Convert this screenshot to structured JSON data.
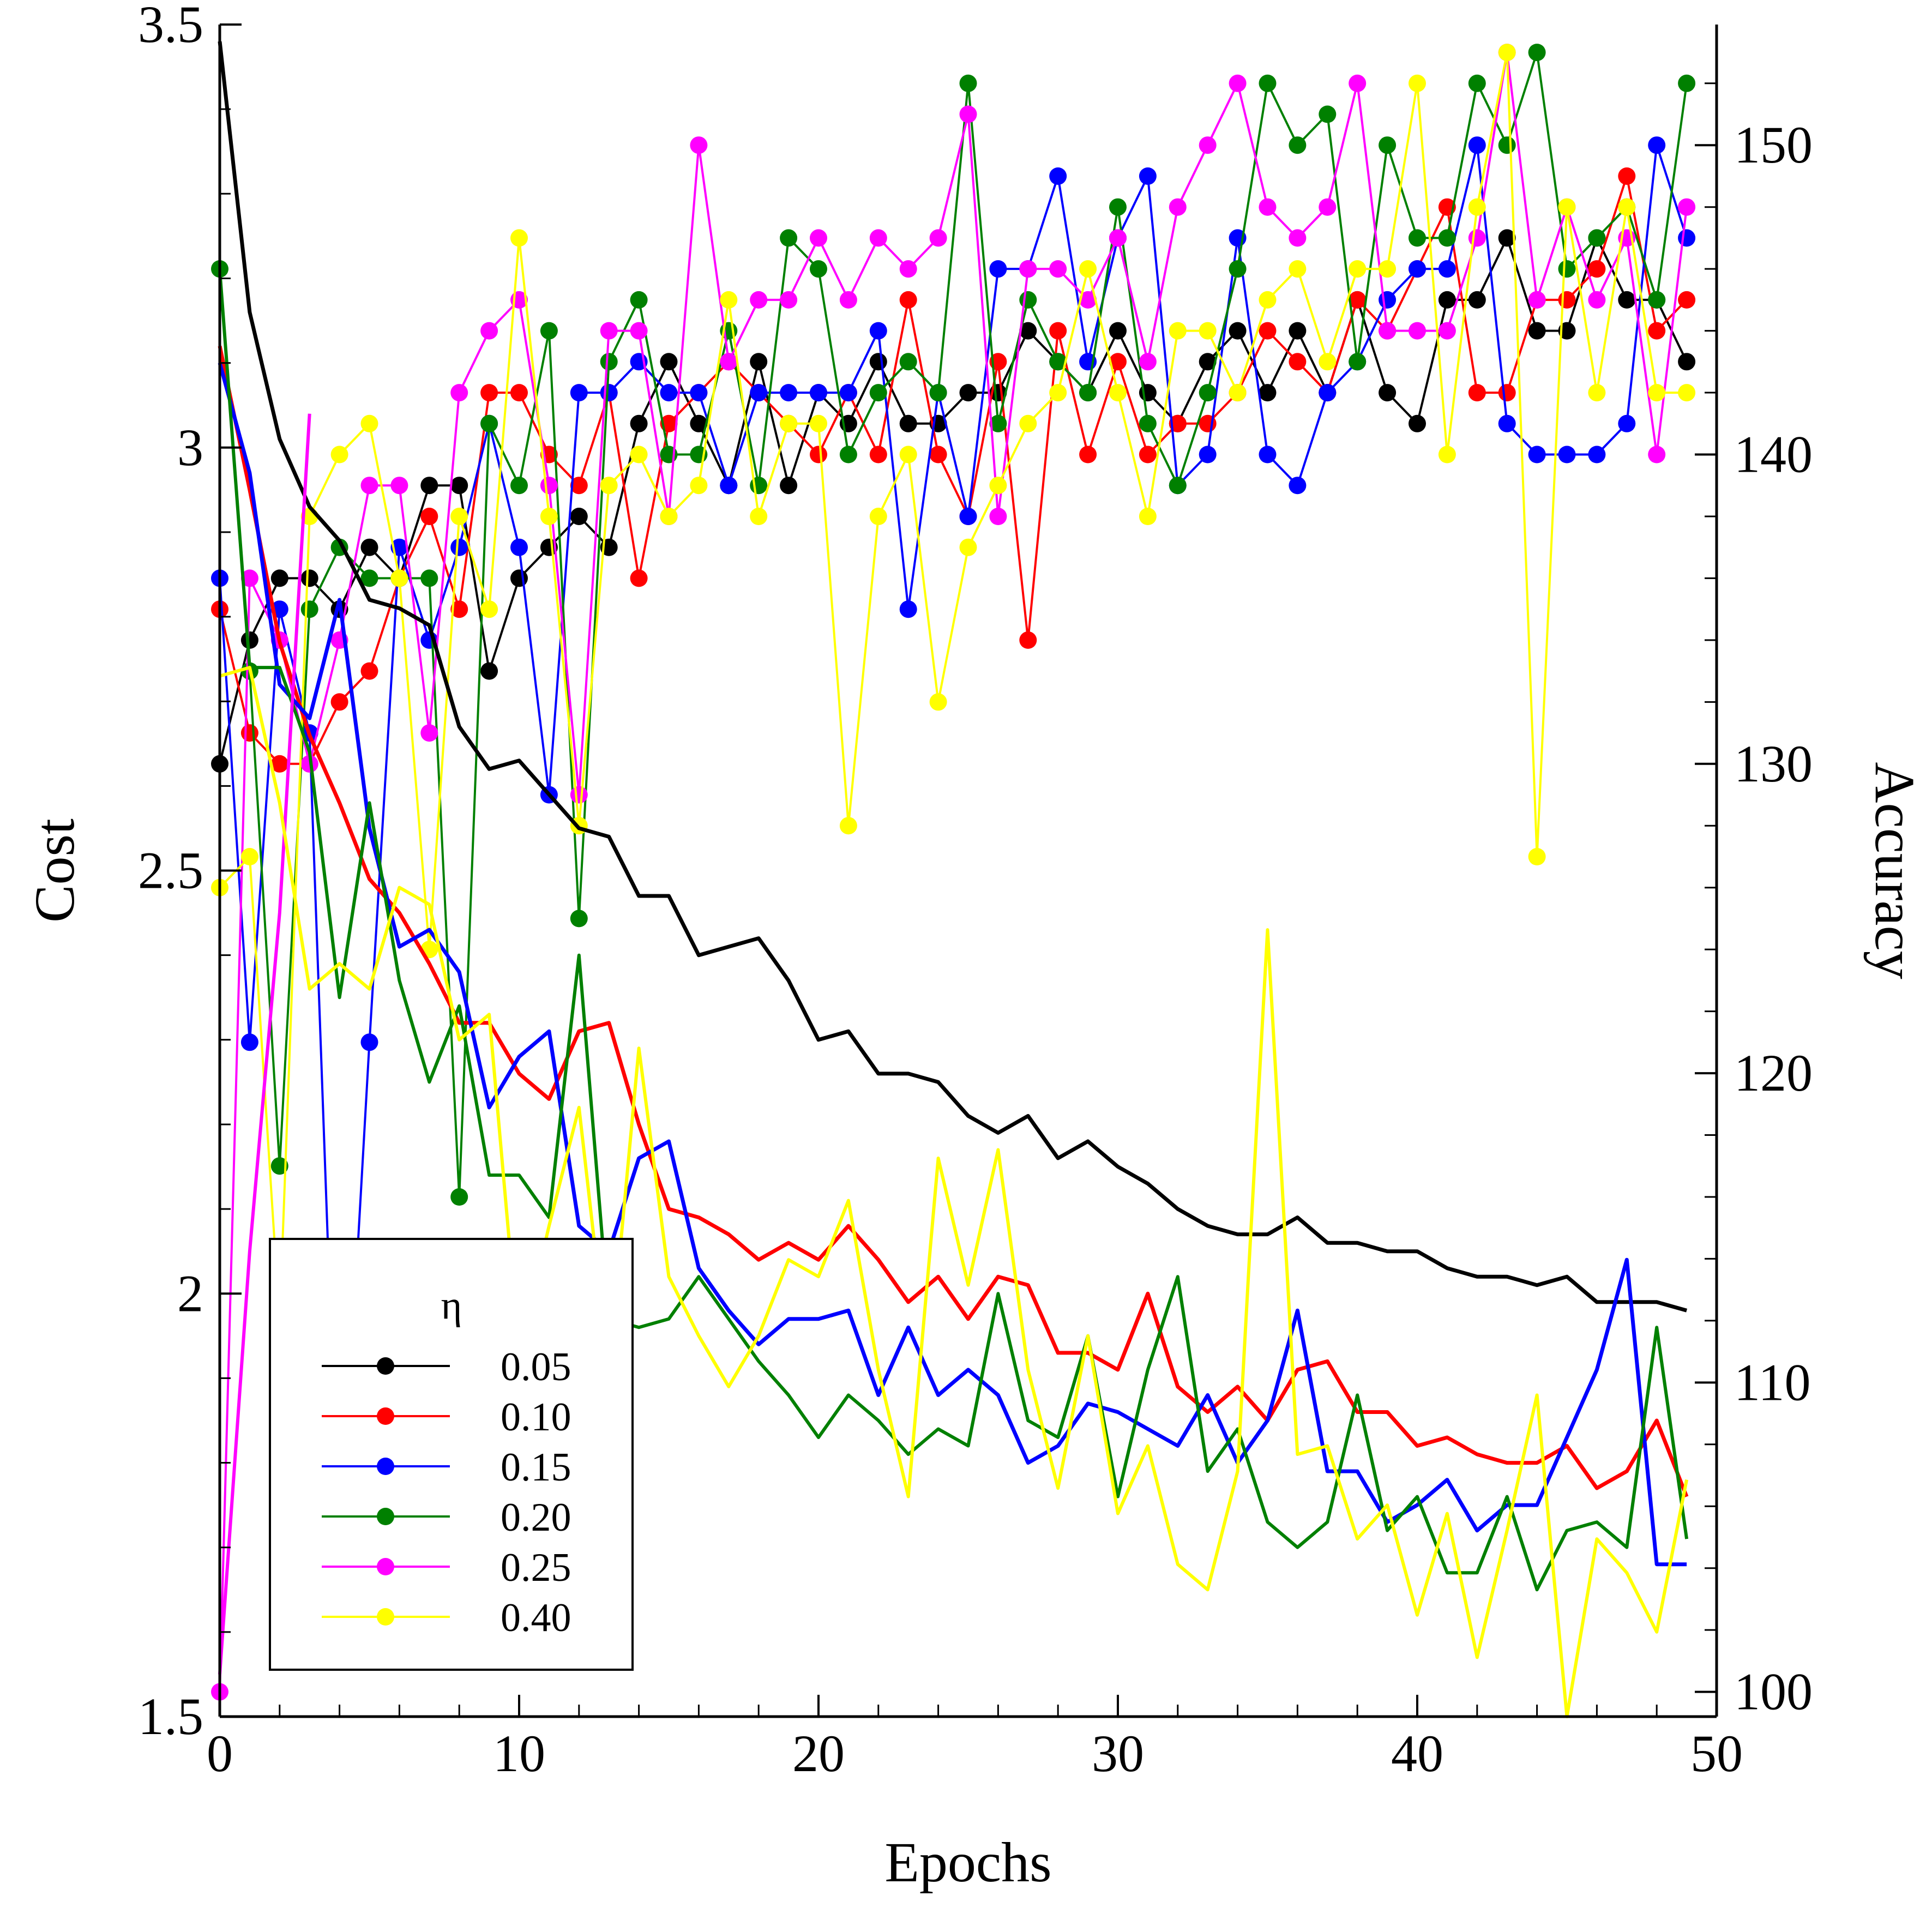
{
  "chart_data": {
    "type": "line",
    "title": "",
    "xlabel": "Epochs",
    "ylabel_left": "Cost",
    "ylabel_right": "Accuracy",
    "xlim": [
      0,
      50
    ],
    "ylim_left": [
      1.5,
      3.5
    ],
    "ylim_right": [
      99.2,
      153.9
    ],
    "x_ticks": [
      "0",
      "10",
      "20",
      "30",
      "40",
      "50"
    ],
    "y_left_ticks": [
      "1.5",
      "2",
      "2.5",
      "3",
      "3.5"
    ],
    "y_right_ticks": [
      "100",
      "110",
      "120",
      "130",
      "140",
      "150"
    ],
    "grid": false,
    "legend": {
      "title": "η",
      "placement": "bottom-left"
    },
    "series": [
      {
        "name": "0.05",
        "color": "#000000",
        "cost": [
          3.48,
          3.16,
          3.01,
          2.93,
          2.89,
          2.82,
          2.81,
          2.79,
          2.67,
          2.62,
          2.63,
          2.59,
          2.55,
          2.54,
          2.47,
          2.47,
          2.4,
          2.41,
          2.42,
          2.37,
          2.3,
          2.31,
          2.26,
          2.26,
          2.25,
          2.21,
          2.19,
          2.21,
          2.16,
          2.18,
          2.15,
          2.13,
          2.1,
          2.08,
          2.07,
          2.07,
          2.09,
          2.06,
          2.06,
          2.05,
          2.05,
          2.03,
          2.02,
          2.02,
          2.01,
          2.02,
          1.99,
          1.99,
          1.99,
          1.98
        ],
        "accuracy": [
          130,
          134,
          136,
          136,
          135,
          137,
          136,
          139,
          139,
          133,
          136,
          137,
          138,
          137,
          141,
          143,
          141,
          139,
          143,
          139,
          142,
          141,
          143,
          141,
          141,
          142,
          142,
          144,
          143,
          142,
          144,
          142,
          141,
          143,
          144,
          142,
          144,
          142,
          145,
          142,
          141,
          145,
          145,
          147,
          144,
          144,
          147,
          145,
          145,
          143
        ]
      },
      {
        "name": "0.10",
        "color": "#ff0000",
        "cost": [
          3.12,
          2.95,
          2.77,
          2.66,
          2.58,
          2.49,
          2.45,
          2.39,
          2.32,
          2.32,
          2.26,
          2.23,
          2.31,
          2.32,
          2.2,
          2.1,
          2.09,
          2.07,
          2.04,
          2.06,
          2.04,
          2.08,
          2.04,
          1.99,
          2.02,
          1.97,
          2.02,
          2.01,
          1.93,
          1.93,
          1.91,
          2.0,
          1.89,
          1.86,
          1.89,
          1.85,
          1.91,
          1.92,
          1.86,
          1.86,
          1.82,
          1.83,
          1.81,
          1.8,
          1.8,
          1.82,
          1.77,
          1.79,
          1.85,
          1.76
        ],
        "accuracy": [
          135,
          131,
          130,
          130,
          132,
          133,
          136,
          138,
          135,
          142,
          142,
          140,
          139,
          142,
          136,
          141,
          142,
          143,
          142,
          141,
          140,
          142,
          140,
          145,
          140,
          138,
          143,
          134,
          144,
          140,
          143,
          140,
          141,
          141,
          142,
          144,
          143,
          142,
          145,
          144,
          146,
          148,
          142,
          142,
          145,
          145,
          146,
          149,
          144,
          145
        ]
      },
      {
        "name": "0.15",
        "color": "#0000ff",
        "cost": [
          3.1,
          2.97,
          2.72,
          2.68,
          2.82,
          2.55,
          2.41,
          2.43,
          2.38,
          2.22,
          2.28,
          2.31,
          2.08,
          2.05,
          2.16,
          2.18,
          2.03,
          1.98,
          1.94,
          1.97,
          1.97,
          1.98,
          1.88,
          1.96,
          1.88,
          1.91,
          1.88,
          1.8,
          1.82,
          1.87,
          1.86,
          1.84,
          1.82,
          1.88,
          1.8,
          1.85,
          1.98,
          1.79,
          1.79,
          1.73,
          1.75,
          1.78,
          1.72,
          1.75,
          1.75,
          1.83,
          1.91,
          2.04,
          1.68,
          1.68
        ],
        "accuracy": [
          136,
          121,
          135,
          131,
          104,
          121,
          137,
          134,
          137,
          141,
          137,
          129,
          142,
          142,
          143,
          142,
          142,
          139,
          142,
          142,
          142,
          142,
          144,
          135,
          142,
          138,
          146,
          146,
          149,
          143,
          147,
          149,
          139,
          140,
          147,
          140,
          139,
          142,
          143,
          145,
          146,
          146,
          150,
          141,
          140,
          140,
          140,
          141,
          150,
          147
        ]
      },
      {
        "name": "0.20",
        "color": "#008000",
        "cost": [
          3.21,
          2.74,
          2.74,
          2.64,
          2.35,
          2.58,
          2.37,
          2.25,
          2.34,
          2.14,
          2.14,
          2.09,
          2.4,
          1.97,
          1.96,
          1.97,
          2.02,
          1.97,
          1.92,
          1.88,
          1.83,
          1.88,
          1.85,
          1.81,
          1.84,
          1.82,
          2.0,
          1.85,
          1.83,
          1.95,
          1.76,
          1.91,
          2.02,
          1.79,
          1.84,
          1.73,
          1.7,
          1.73,
          1.88,
          1.72,
          1.76,
          1.67,
          1.67,
          1.76,
          1.65,
          1.72,
          1.73,
          1.7,
          1.96,
          1.71
        ],
        "accuracy": [
          146,
          133,
          117,
          135,
          137,
          136,
          136,
          136,
          116,
          141,
          139,
          144,
          125,
          143,
          145,
          140,
          140,
          144,
          139,
          147,
          146,
          140,
          142,
          143,
          142,
          152,
          141,
          145,
          143,
          142,
          148,
          141,
          139,
          142,
          146,
          152,
          150,
          151,
          143,
          150,
          147,
          147,
          152,
          150,
          153,
          146,
          147,
          148,
          145,
          152
        ]
      },
      {
        "name": "0.25",
        "color": "#ff00ff",
        "cost": [
          1.55,
          2.05,
          2.45,
          3.04,
          null,
          null,
          null,
          null,
          null,
          null,
          null,
          null,
          null,
          null,
          null,
          null,
          null,
          null,
          null,
          null,
          null,
          null,
          null,
          null,
          null,
          null,
          null,
          null,
          null,
          null,
          null,
          null,
          null,
          null,
          null,
          null,
          null,
          null,
          null,
          null,
          null,
          null,
          null,
          null,
          null,
          null,
          null,
          null,
          null,
          null
        ],
        "accuracy": [
          100,
          136,
          134,
          130,
          134,
          139,
          139,
          131,
          142,
          144,
          145,
          139,
          129,
          144,
          144,
          138,
          150,
          143,
          145,
          145,
          147,
          145,
          147,
          146,
          147,
          151,
          138,
          146,
          146,
          145,
          147,
          143,
          148,
          150,
          152,
          148,
          147,
          148,
          152,
          144,
          144,
          144,
          147,
          153,
          145,
          148,
          145,
          147,
          140,
          148
        ]
      },
      {
        "name": "0.40",
        "color": "#ffff00",
        "cost": [
          2.73,
          2.74,
          2.58,
          2.36,
          2.39,
          2.36,
          2.48,
          2.46,
          2.3,
          2.33,
          1.93,
          2.08,
          2.22,
          1.91,
          2.29,
          2.02,
          1.95,
          1.89,
          1.95,
          2.04,
          2.02,
          2.11,
          1.91,
          1.76,
          2.16,
          2.01,
          2.17,
          1.91,
          1.77,
          1.95,
          1.74,
          1.82,
          1.68,
          1.65,
          1.79,
          2.43,
          1.81,
          1.82,
          1.71,
          1.75,
          1.62,
          1.74,
          1.57,
          1.72,
          1.88,
          1.5,
          1.71,
          1.67,
          1.6,
          1.78
        ],
        "accuracy": [
          126,
          127,
          112,
          138,
          140,
          141,
          136,
          124,
          138,
          135,
          147,
          138,
          128,
          139,
          140,
          138,
          139,
          145,
          138,
          141,
          141,
          128,
          138,
          140,
          132,
          137,
          139,
          141,
          142,
          146,
          142,
          138,
          144,
          144,
          142,
          145,
          146,
          143,
          146,
          146,
          152,
          140,
          148,
          153,
          127,
          148,
          142,
          148,
          142,
          142
        ]
      }
    ]
  }
}
